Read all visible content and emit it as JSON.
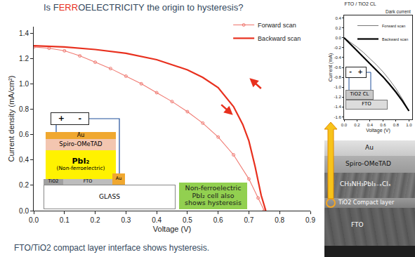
{
  "header": {
    "title_parts": [
      "Is F",
      "ERR",
      "OELECTRICITY the origin to hysteresis?"
    ]
  },
  "chart_data": [
    {
      "type": "line",
      "x_label": "Voltage (V)",
      "y_label": "Current density (mA/cm²)",
      "xlim": [
        0,
        0.9
      ],
      "ylim": [
        0,
        1.45
      ],
      "xticks": [
        {
          "value": 0,
          "label": "0.0"
        },
        0.1,
        0.2,
        0.3,
        0.4,
        0.5,
        0.6,
        0.7,
        0.8,
        0.9
      ],
      "yticks": [
        {
          "value": 0,
          "label": "0.0"
        },
        0.2,
        0.4,
        0.6,
        0.8,
        {
          "value": 1,
          "label": "1.0"
        },
        1.2,
        1.4
      ],
      "grid": false,
      "legend": "upper right",
      "series": [
        {
          "name": "Forward scan",
          "color": "#f07a72",
          "marker": "open circle",
          "line_style": "solid",
          "x": [
            0,
            0.05,
            0.1,
            0.15,
            0.2,
            0.25,
            0.3,
            0.35,
            0.4,
            0.45,
            0.5,
            0.55,
            0.6,
            0.65,
            0.7,
            0.73,
            0.75
          ],
          "values": [
            1.29,
            1.28,
            1.26,
            1.22,
            1.17,
            1.12,
            1.06,
            1.0,
            0.93,
            0.86,
            0.78,
            0.69,
            0.58,
            0.44,
            0.25,
            0.1,
            0.0
          ]
        },
        {
          "name": "Backward scan",
          "color": "#e8301e",
          "line_style": "thick",
          "x": [
            0,
            0.1,
            0.2,
            0.3,
            0.4,
            0.5,
            0.55,
            0.6,
            0.65,
            0.68,
            0.7,
            0.72,
            0.74,
            0.755
          ],
          "values": [
            1.3,
            1.29,
            1.27,
            1.24,
            1.19,
            1.11,
            1.05,
            0.97,
            0.82,
            0.68,
            0.55,
            0.35,
            0.12,
            0.0
          ]
        }
      ]
    },
    {
      "type": "line",
      "title": "FTO / TiO2 CL",
      "annotations": [
        "Dark current"
      ],
      "x_label": "Voltage (V)",
      "y_label": "Current (mA)",
      "xlim": [
        0,
        1.05
      ],
      "ylim": [
        -1.65,
        0.45
      ],
      "xticks": [
        {
          "value": 0,
          "label": "0.0"
        },
        0.2,
        0.4,
        0.6,
        0.8,
        {
          "value": 1,
          "label": "1.0"
        }
      ],
      "yticks": [
        0.4,
        0.2,
        {
          "value": 0,
          "label": "0.0"
        },
        -0.2,
        -0.4,
        -0.6,
        -0.8,
        {
          "value": -1,
          "label": "-1.0"
        },
        -1.2,
        -1.4,
        -1.6
      ],
      "grid": false,
      "legend": "upper right",
      "series": [
        {
          "name": "Forward scan",
          "color": "#555555",
          "line_style": "thin",
          "x": [
            0,
            0.1,
            0.2,
            0.3,
            0.4,
            0.5,
            0.6,
            0.7,
            0.8,
            0.9,
            1.0
          ],
          "values": [
            0,
            -0.09,
            -0.19,
            -0.3,
            -0.42,
            -0.55,
            -0.69,
            -0.85,
            -1.03,
            -1.24,
            -1.48
          ]
        },
        {
          "name": "Backward scan",
          "color": "#000000",
          "line_style": "thick",
          "x": [
            0,
            0.1,
            0.2,
            0.3,
            0.4,
            0.5,
            0.6,
            0.7,
            0.8,
            0.9,
            1.0
          ],
          "values": [
            0,
            -0.13,
            -0.26,
            -0.39,
            -0.52,
            -0.65,
            -0.79,
            -0.94,
            -1.1,
            -1.28,
            -1.48
          ]
        }
      ]
    }
  ],
  "caption": "FTO/TiO2 compact layer interface shows hysteresis.",
  "left_device": {
    "battery": [
      "+",
      "-"
    ],
    "layers": {
      "top_contact": "Au",
      "hole_transport": "Spiro-OMeTAD",
      "absorber": "PbI₂",
      "absorber_note": "(Non-ferroelectric)",
      "compact_layer": "TiO2",
      "electrode": "FTO",
      "side_contact": "Au",
      "substrate": "GLASS"
    },
    "note": "Non-ferroelectric PbI₂ cell also shows hysteresis"
  },
  "right_device": {
    "battery": [
      "-",
      "+"
    ],
    "layers": {
      "compact_layer": "TiO2 CL",
      "electrode": "FTO"
    }
  },
  "sem": {
    "labels": [
      "Au",
      "Spiro-OMeTAD",
      "CH₃NH₃PbI₃₋ₓClₓ",
      "TiO2 Compact layer",
      "FTO"
    ]
  }
}
